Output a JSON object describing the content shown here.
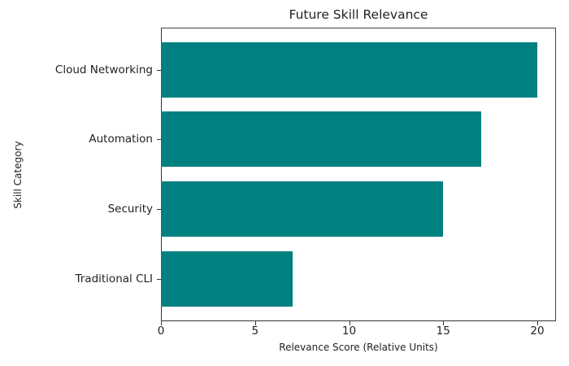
{
  "chart_data": {
    "type": "bar",
    "orientation": "horizontal",
    "title": "Future Skill Relevance",
    "xlabel": "Relevance Score (Relative Units)",
    "ylabel": "Skill Category",
    "categories": [
      "Cloud Networking",
      "Automation",
      "Security",
      "Traditional CLI"
    ],
    "values": [
      20,
      17,
      15,
      7
    ],
    "xlim": [
      0,
      21
    ],
    "xticks": [
      "0",
      "5",
      "10",
      "15",
      "20"
    ],
    "grid": false,
    "legend": null,
    "bar_color": "#008080"
  }
}
